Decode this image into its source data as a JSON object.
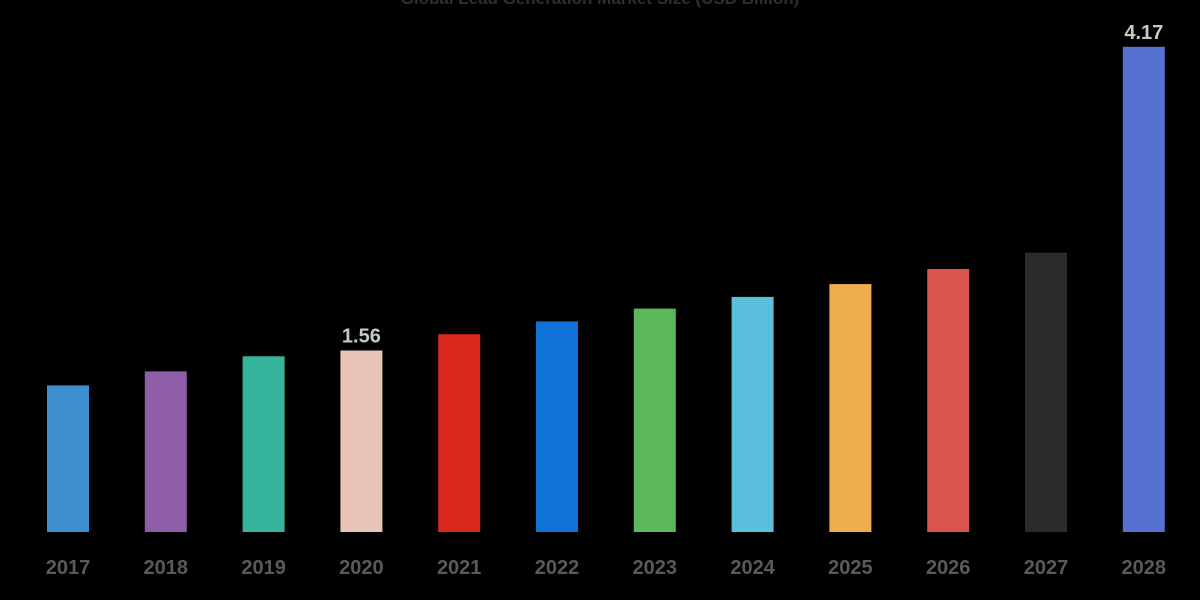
{
  "chart_data": {
    "type": "bar",
    "title": "Global Lead Generation Market Size (USD Billion)",
    "xlabel": "",
    "ylabel": "",
    "ylim": [
      0,
      4.4
    ],
    "grid": false,
    "legend": "none",
    "categories": [
      "2017",
      "2018",
      "2019",
      "2020",
      "2021",
      "2022",
      "2023",
      "2024",
      "2025",
      "2026",
      "2027",
      "2028"
    ],
    "values": [
      1.26,
      1.38,
      1.51,
      1.56,
      1.7,
      1.81,
      1.92,
      2.02,
      2.13,
      2.26,
      2.4,
      4.17
    ],
    "data_labels": [
      "",
      "",
      "",
      "1.56",
      "",
      "",
      "",
      "",
      "",
      "",
      "",
      "4.17"
    ],
    "colors": [
      "#3d8fcf",
      "#8e5ea8",
      "#37b59c",
      "#e8c3b8",
      "#d9291c",
      "#0f72d6",
      "#5cb85c",
      "#5bc0de",
      "#f0ad4e",
      "#d9534f",
      "#2a2b2d",
      "#5670d2"
    ]
  }
}
